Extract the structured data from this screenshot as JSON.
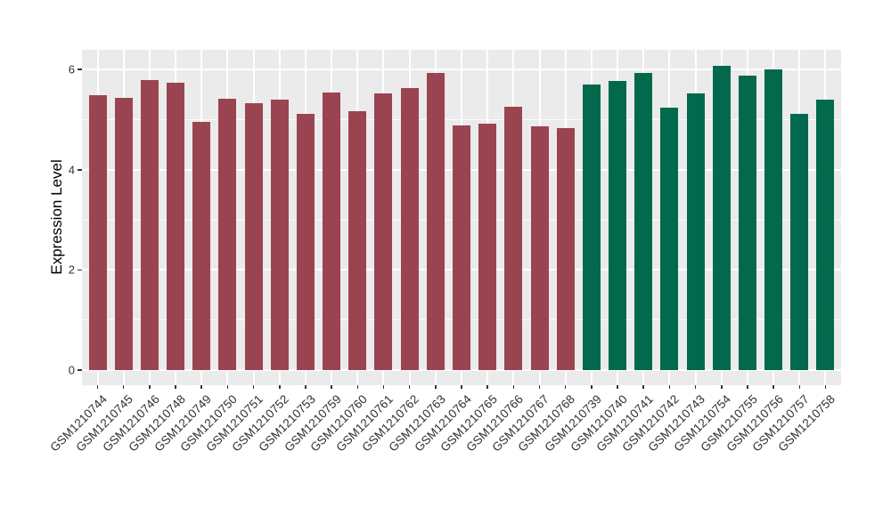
{
  "chart_data": {
    "type": "bar",
    "title": "",
    "xlabel": "",
    "ylabel": "Expression Level",
    "y_major_ticks": [
      0,
      2,
      4,
      6
    ],
    "y_minor_ticks": [
      1,
      3,
      5
    ],
    "ylim": [
      0,
      6.39
    ],
    "grid": "on",
    "legend_position": "none",
    "categories": [
      "GSM1210744",
      "GSM1210745",
      "GSM1210746",
      "GSM1210748",
      "GSM1210749",
      "GSM1210750",
      "GSM1210751",
      "GSM1210752",
      "GSM1210753",
      "GSM1210759",
      "GSM1210760",
      "GSM1210761",
      "GSM1210762",
      "GSM1210763",
      "GSM1210764",
      "GSM1210765",
      "GSM1210766",
      "GSM1210767",
      "GSM1210768",
      "GSM1210739",
      "GSM1210740",
      "GSM1210741",
      "GSM1210742",
      "GSM1210743",
      "GSM1210754",
      "GSM1210755",
      "GSM1210756",
      "GSM1210757",
      "GSM1210758"
    ],
    "values": [
      5.48,
      5.44,
      5.79,
      5.73,
      4.96,
      5.42,
      5.33,
      5.4,
      5.11,
      5.54,
      5.16,
      5.53,
      5.63,
      5.93,
      4.89,
      4.92,
      5.26,
      4.87,
      4.84,
      5.7,
      5.77,
      5.93,
      5.24,
      5.52,
      6.08,
      5.88,
      6.01,
      5.11,
      5.4
    ],
    "bar_groups": [
      "group1",
      "group1",
      "group1",
      "group1",
      "group1",
      "group1",
      "group1",
      "group1",
      "group1",
      "group1",
      "group1",
      "group1",
      "group1",
      "group1",
      "group1",
      "group1",
      "group1",
      "group1",
      "group1",
      "group2",
      "group2",
      "group2",
      "group2",
      "group2",
      "group2",
      "group2",
      "group2",
      "group2",
      "group2"
    ]
  },
  "colors": {
    "group1": "#9B4451",
    "group2": "#02694C",
    "panel_background": "#EBEBEB",
    "gridline": "#FFFFFF",
    "axis_text": "#333333",
    "axis_title": "#000000",
    "figure_background": "#FFFFFF"
  }
}
